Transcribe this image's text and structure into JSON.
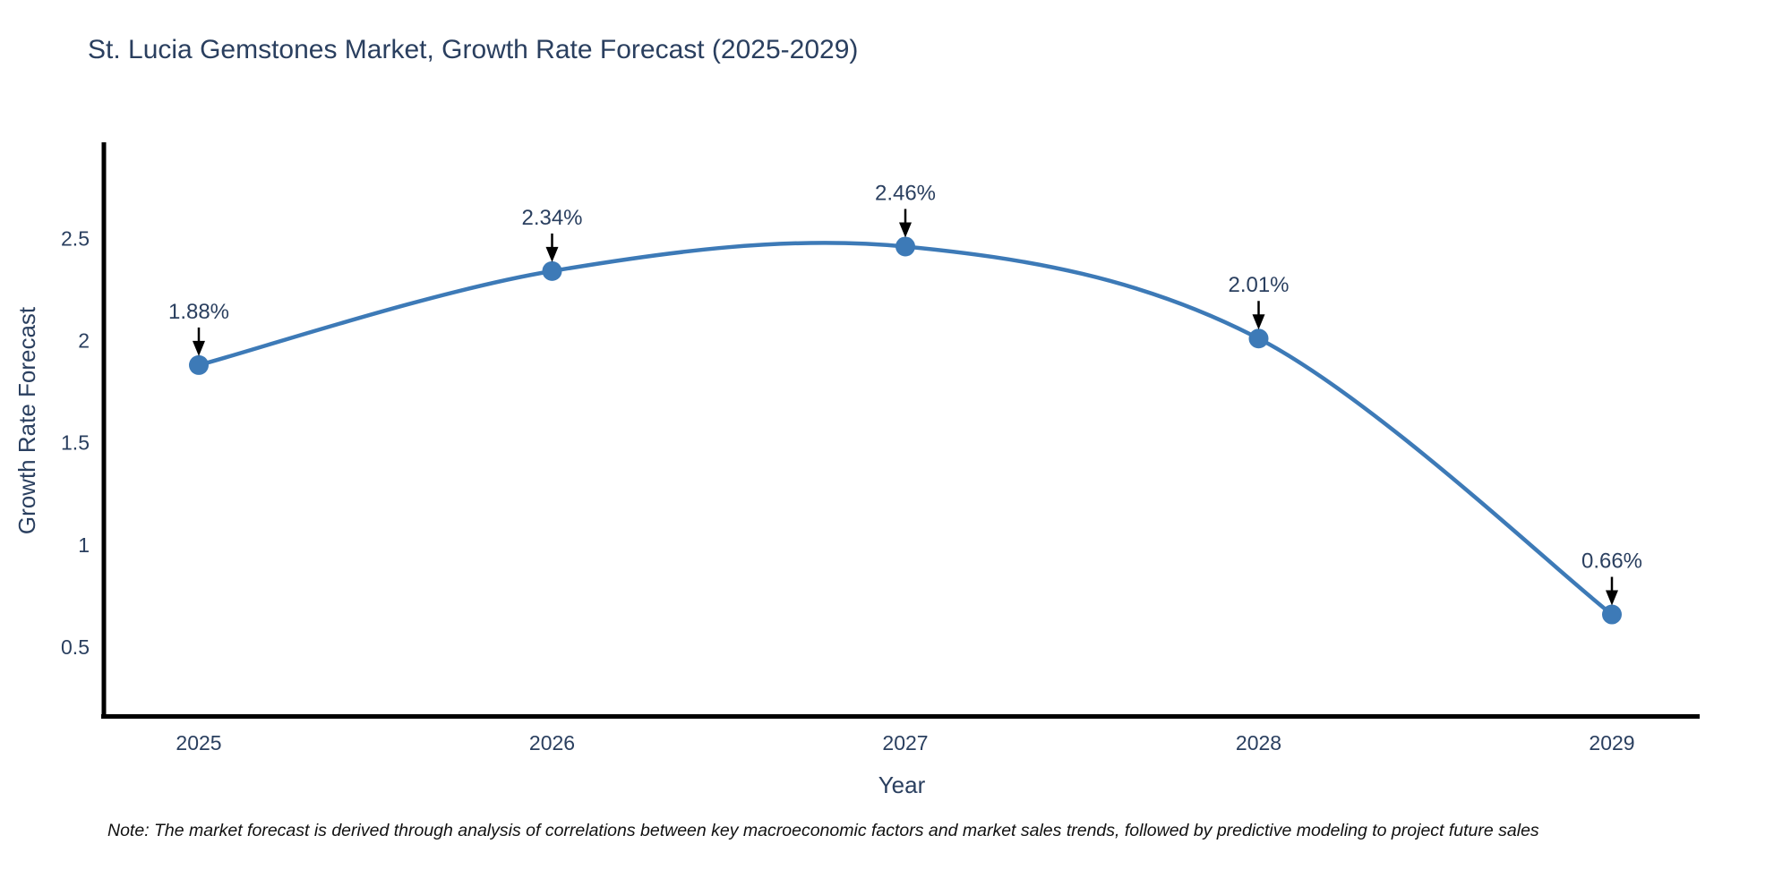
{
  "chart_data": {
    "type": "line",
    "title": "St. Lucia Gemstones Market, Growth Rate Forecast (2025-2029)",
    "xlabel": "Year",
    "ylabel": "Growth Rate Forecast",
    "categories": [
      "2025",
      "2026",
      "2027",
      "2028",
      "2029"
    ],
    "series": [
      {
        "name": "Growth Rate Forecast",
        "values": [
          1.88,
          2.34,
          2.46,
          2.01,
          0.66
        ],
        "point_labels": [
          "1.88%",
          "2.34%",
          "2.46%",
          "2.01%",
          "0.66%"
        ]
      }
    ],
    "yticks": [
      0.5,
      1,
      1.5,
      2,
      2.5
    ],
    "ytick_labels": [
      "0.5",
      "1",
      "1.5",
      "2",
      "2.5"
    ],
    "ylim": [
      0.15,
      2.97
    ],
    "grid": false,
    "legend": false,
    "line_shape": "spline",
    "markers": true,
    "annotations_arrows": true,
    "colors": {
      "line": "#3d7ab7",
      "marker": "#3d7ab7",
      "arrow": "#000000",
      "axis": "#000000",
      "text": "#2a3f5f",
      "note_text": "#111111",
      "background": "#ffffff"
    },
    "note": "Note: The market forecast is derived through analysis of correlations between key macroeconomic factors and market sales trends, followed by predictive modeling to project future sales"
  }
}
